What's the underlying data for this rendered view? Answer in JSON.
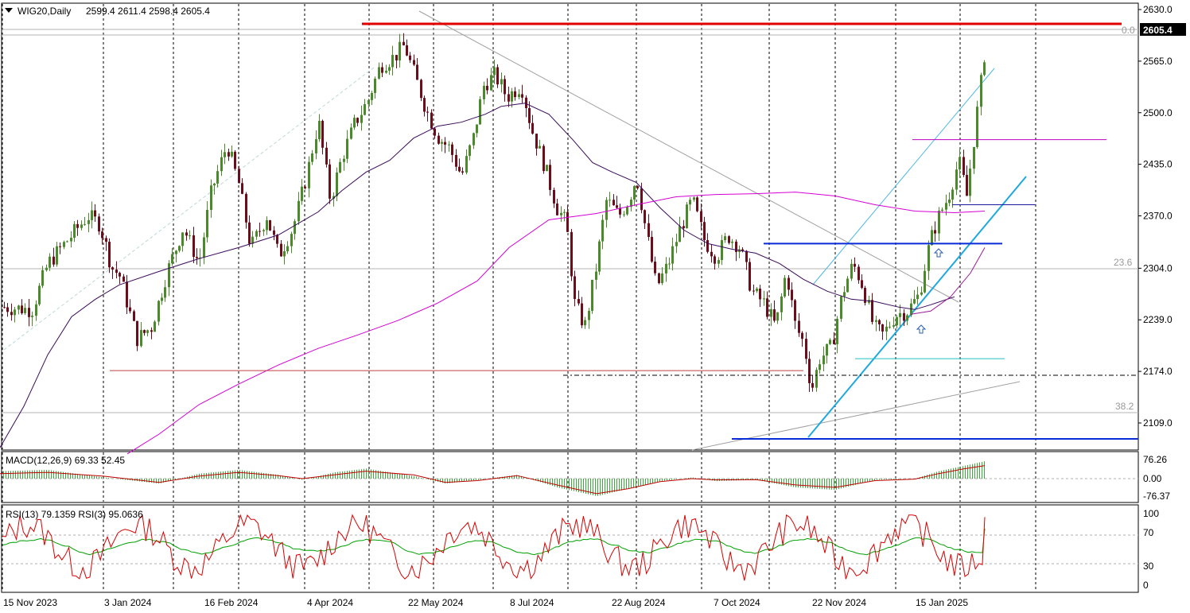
{
  "header": {
    "symbol": "WIG20,Daily",
    "ohlc": "2599.4 2611.4 2598.4 2605.4"
  },
  "chart_data": [
    {
      "type": "candlestick",
      "symbol": "WIG20",
      "timeframe": "Daily",
      "last_price_label": "2605.4",
      "ylim": [
        2070,
        2640
      ],
      "y_ticks": [
        "2630.0",
        "2565.0",
        "2500.0",
        "2435.0",
        "2370.0",
        "2304.0",
        "2239.0",
        "2174.0",
        "2109.0"
      ],
      "x_ticks": [
        "15 Nov 2023",
        "3 Jan 2024",
        "16 Feb 2024",
        "4 Apr 2024",
        "22 May 2024",
        "8 Jul 2024",
        "22 Aug 2024",
        "7 Oct 2024",
        "22 Nov 2024",
        "15 Jan 2025"
      ],
      "fibonacci_labels": [
        "0.0",
        "23.6",
        "38.2"
      ],
      "levels": [
        {
          "name": "resistance",
          "value": 2612,
          "color": "#e00000"
        },
        {
          "name": "horizontal",
          "value": 2466,
          "color": "#c000c0"
        },
        {
          "name": "horizontal",
          "value": 2384,
          "color": "#1a1aa0"
        },
        {
          "name": "support",
          "value": 2335,
          "color": "#0a2bd8"
        },
        {
          "name": "horizontal",
          "value": 2190,
          "color": "#20c0c0"
        },
        {
          "name": "support",
          "value": 2175,
          "color": "#c04040"
        },
        {
          "name": "support",
          "value": 2089,
          "color": "#0a2bd8"
        }
      ],
      "series": [
        {
          "name": "moving average 1",
          "color": "#3a0a5a",
          "values": [
            [
              0,
              2078
            ],
            [
              30,
              2130
            ],
            [
              60,
              2195
            ],
            [
              90,
              2243
            ],
            [
              120,
              2265
            ],
            [
              150,
              2283
            ],
            [
              200,
              2300
            ],
            [
              250,
              2316
            ],
            [
              300,
              2330
            ],
            [
              350,
              2346
            ],
            [
              400,
              2375
            ],
            [
              430,
              2402
            ],
            [
              460,
              2425
            ],
            [
              490,
              2440
            ],
            [
              520,
              2468
            ],
            [
              550,
              2483
            ],
            [
              580,
              2488
            ],
            [
              610,
              2498
            ],
            [
              630,
              2508
            ],
            [
              660,
              2512
            ],
            [
              690,
              2498
            ],
            [
              720,
              2466
            ],
            [
              745,
              2437
            ],
            [
              770,
              2425
            ],
            [
              800,
              2412
            ],
            [
              830,
              2380
            ],
            [
              860,
              2352
            ],
            [
              890,
              2335
            ],
            [
              920,
              2328
            ],
            [
              950,
              2323
            ],
            [
              980,
              2310
            ],
            [
              1010,
              2290
            ],
            [
              1040,
              2275
            ],
            [
              1070,
              2265
            ],
            [
              1100,
              2262
            ],
            [
              1130,
              2255
            ],
            [
              1150,
              2252
            ],
            [
              1170,
              2258
            ],
            [
              1200,
              2268
            ]
          ]
        },
        {
          "name": "moving average 2",
          "color": "#d400d4",
          "values": [
            [
              160,
              2070
            ],
            [
              200,
              2095
            ],
            [
              250,
              2132
            ],
            [
              300,
              2158
            ],
            [
              350,
              2182
            ],
            [
              400,
              2203
            ],
            [
              450,
              2220
            ],
            [
              500,
              2238
            ],
            [
              550,
              2260
            ],
            [
              600,
              2288
            ],
            [
              640,
              2330
            ],
            [
              690,
              2365
            ],
            [
              750,
              2373
            ],
            [
              800,
              2384
            ],
            [
              850,
              2394
            ],
            [
              900,
              2397
            ],
            [
              950,
              2398
            ],
            [
              1000,
              2400
            ],
            [
              1050,
              2395
            ],
            [
              1100,
              2384
            ],
            [
              1150,
              2376
            ],
            [
              1200,
              2374
            ],
            [
              1238,
              2376
            ]
          ]
        },
        {
          "name": "moving average 3",
          "color": "#9a1a9a",
          "values": [
            [
              1145,
              2246
            ],
            [
              1170,
              2250
            ],
            [
              1195,
              2268
            ],
            [
              1220,
              2298
            ],
            [
              1238,
              2330
            ]
          ]
        }
      ]
    },
    {
      "type": "histogram+line",
      "title": "MACD(12,26,9) 69.33 52.45",
      "y_ticks": [
        "76.26",
        "0.00",
        "-76.37"
      ],
      "histogram": [
        [
          0,
          30
        ],
        [
          60,
          35
        ],
        [
          130,
          5
        ],
        [
          200,
          -20
        ],
        [
          250,
          20
        ],
        [
          300,
          35
        ],
        [
          350,
          15
        ],
        [
          380,
          -5
        ],
        [
          420,
          25
        ],
        [
          460,
          40
        ],
        [
          520,
          10
        ],
        [
          560,
          -20
        ],
        [
          600,
          -5
        ],
        [
          650,
          15
        ],
        [
          700,
          -35
        ],
        [
          750,
          -70
        ],
        [
          790,
          -40
        ],
        [
          830,
          -10
        ],
        [
          870,
          5
        ],
        [
          900,
          -10
        ],
        [
          950,
          -5
        ],
        [
          1000,
          -35
        ],
        [
          1050,
          -45
        ],
        [
          1100,
          -5
        ],
        [
          1150,
          0
        ],
        [
          1180,
          30
        ],
        [
          1210,
          50
        ],
        [
          1238,
          70
        ]
      ],
      "signal": [
        [
          0,
          20
        ],
        [
          60,
          25
        ],
        [
          130,
          10
        ],
        [
          200,
          -15
        ],
        [
          250,
          10
        ],
        [
          300,
          25
        ],
        [
          350,
          12
        ],
        [
          380,
          0
        ],
        [
          420,
          15
        ],
        [
          460,
          30
        ],
        [
          520,
          15
        ],
        [
          560,
          -15
        ],
        [
          600,
          -8
        ],
        [
          650,
          12
        ],
        [
          700,
          -25
        ],
        [
          750,
          -60
        ],
        [
          790,
          -40
        ],
        [
          830,
          -12
        ],
        [
          870,
          0
        ],
        [
          900,
          -5
        ],
        [
          950,
          -4
        ],
        [
          1000,
          -25
        ],
        [
          1050,
          -35
        ],
        [
          1100,
          -8
        ],
        [
          1150,
          -2
        ],
        [
          1180,
          20
        ],
        [
          1210,
          38
        ],
        [
          1238,
          52
        ]
      ]
    },
    {
      "type": "line",
      "title": "RSI(13) 79.1359  RSI(3) 95.0636",
      "y_ticks": [
        "100",
        "70",
        "30",
        "0"
      ],
      "series": [
        {
          "name": "RSI(3)",
          "color": "#d80000",
          "amp": 45,
          "base": 55
        },
        {
          "name": "RSI(13)",
          "color": "#00a000",
          "amp": 15,
          "base": 55
        }
      ],
      "last": {
        "rsi13": 79.1359,
        "rsi3": 95.0636
      }
    }
  ],
  "axis_labels": {
    "price_box": "2605.4"
  }
}
